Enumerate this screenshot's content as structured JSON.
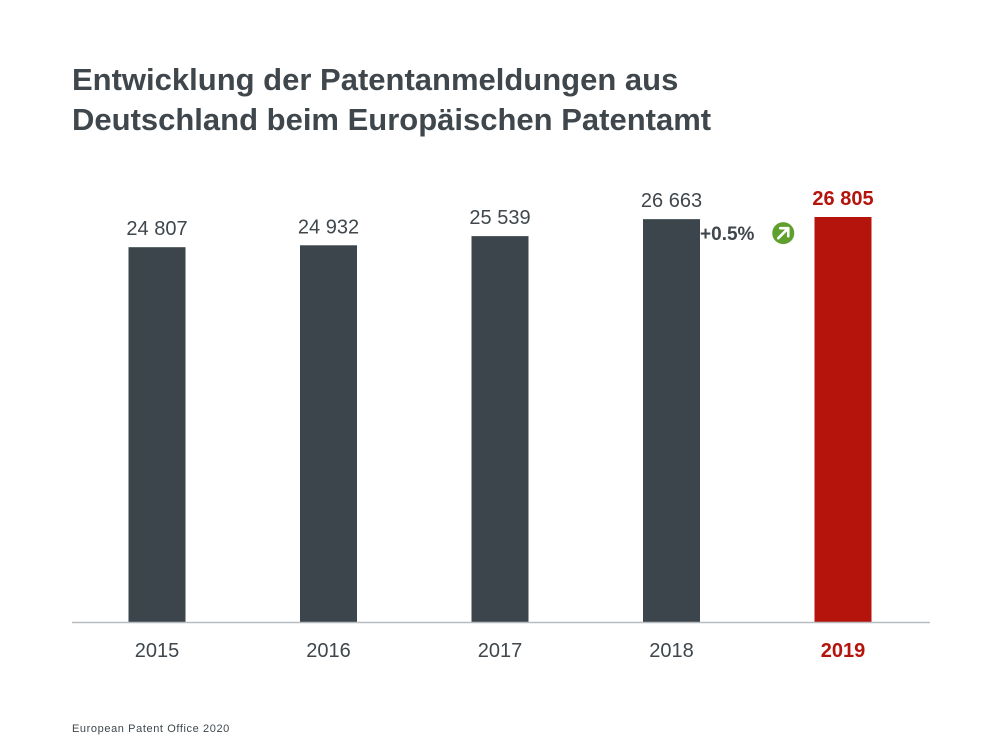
{
  "title_lines": [
    "Entwicklung der Patentanmeldungen aus",
    "Deutschland beim Europäischen Patentamt"
  ],
  "footer": "European Patent Office 2020",
  "colors": {
    "bar": "#3b454b",
    "highlight": "#b5140c",
    "text": "#3f474c",
    "axis": "#b7bcc0",
    "growth_badge": "#5e9f2d"
  },
  "chart_data": {
    "type": "bar",
    "title": "Entwicklung der Patentanmeldungen aus Deutschland beim Europäischen Patentamt",
    "categories": [
      "2015",
      "2016",
      "2017",
      "2018",
      "2019"
    ],
    "values": [
      24807,
      24932,
      25539,
      26663,
      26805
    ],
    "value_labels": [
      "24 807",
      "24 932",
      "25 539",
      "26 663",
      "26 805"
    ],
    "highlight_index": 4,
    "annotation": {
      "text": "+0.5%",
      "icon": "arrow-up-right-icon",
      "between": [
        "2018",
        "2019"
      ]
    },
    "xlabel": "",
    "ylabel": "",
    "ylim": [
      0,
      26805
    ],
    "grid": false,
    "legend": false
  }
}
